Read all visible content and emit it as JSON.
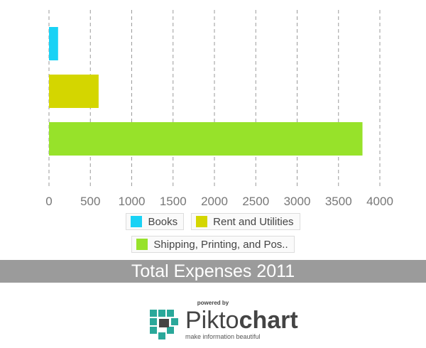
{
  "chart_data": {
    "type": "bar",
    "orientation": "horizontal",
    "categories": [
      "Books",
      "Rent and Utilities",
      "Shipping, Printing, and Pos.."
    ],
    "values": [
      110,
      600,
      3790
    ],
    "colors": [
      "#19d2f5",
      "#d4d600",
      "#97e22a"
    ],
    "xlim": [
      0,
      4000
    ],
    "xticks": [
      0,
      500,
      1000,
      1500,
      2000,
      2500,
      3000,
      3500,
      4000
    ],
    "grid": true,
    "legend_placement": "bottom",
    "title": "Total Expenses 2011"
  },
  "footer": {
    "powered_by": "powered by",
    "brand_light": "Pikto",
    "brand_bold": "chart",
    "tagline": "make information beautiful"
  }
}
